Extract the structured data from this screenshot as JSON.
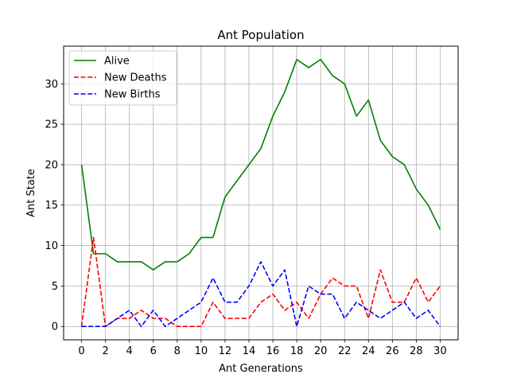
{
  "chart_data": {
    "type": "line",
    "title": "Ant Population",
    "xlabel": "Ant Generations",
    "ylabel": "Ant State",
    "xlim": [
      -1.5,
      31.5
    ],
    "ylim": [
      -1.65,
      34.65
    ],
    "xticks": [
      0,
      2,
      4,
      6,
      8,
      10,
      12,
      14,
      16,
      18,
      20,
      22,
      24,
      26,
      28,
      30
    ],
    "yticks": [
      0,
      5,
      10,
      15,
      20,
      25,
      30
    ],
    "grid": true,
    "legend_position": "upper-left",
    "x": [
      0,
      1,
      2,
      3,
      4,
      5,
      6,
      7,
      8,
      9,
      10,
      11,
      12,
      13,
      14,
      15,
      16,
      17,
      18,
      19,
      20,
      21,
      22,
      23,
      24,
      25,
      26,
      27,
      28,
      29,
      30
    ],
    "series": [
      {
        "name": "Alive",
        "color": "#008000",
        "style": "solid",
        "values": [
          20,
          9,
          9,
          8,
          8,
          8,
          7,
          8,
          8,
          9,
          11,
          11,
          16,
          18,
          20,
          22,
          26,
          29,
          33,
          32,
          33,
          31,
          30,
          26,
          28,
          23,
          21,
          20,
          17,
          15,
          12
        ]
      },
      {
        "name": "New Deaths",
        "color": "#ff0000",
        "style": "dashed",
        "values": [
          0,
          11,
          0,
          1,
          1,
          2,
          1,
          1,
          0,
          0,
          0,
          3,
          1,
          1,
          1,
          3,
          4,
          2,
          3,
          1,
          4,
          6,
          5,
          5,
          1,
          7,
          3,
          3,
          6,
          3,
          5
        ]
      },
      {
        "name": "New Births",
        "color": "#0000ff",
        "style": "dashed",
        "values": [
          0,
          0,
          0,
          1,
          2,
          0,
          2,
          0,
          1,
          2,
          3,
          6,
          3,
          3,
          5,
          8,
          5,
          7,
          0,
          5,
          4,
          4,
          1,
          3,
          2,
          1,
          2,
          3,
          1,
          2,
          0
        ]
      }
    ]
  }
}
